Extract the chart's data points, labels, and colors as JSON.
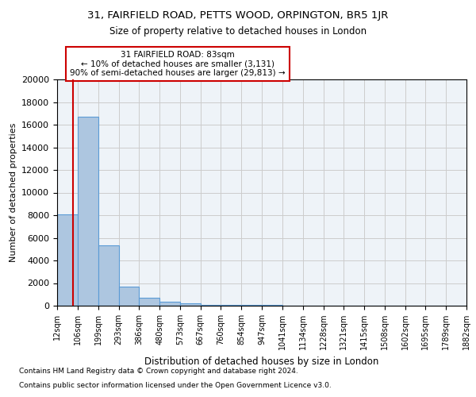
{
  "title1": "31, FAIRFIELD ROAD, PETTS WOOD, ORPINGTON, BR5 1JR",
  "title2": "Size of property relative to detached houses in London",
  "xlabel": "Distribution of detached houses by size in London",
  "ylabel": "Number of detached properties",
  "bar_edges": [
    12,
    106,
    199,
    293,
    386,
    480,
    573,
    667,
    760,
    854,
    947,
    1041,
    1134,
    1228,
    1321,
    1415,
    1508,
    1602,
    1695,
    1789,
    1882
  ],
  "bar_heights": [
    8100,
    16700,
    5300,
    1700,
    700,
    350,
    200,
    100,
    80,
    50,
    40,
    30,
    20,
    15,
    10,
    8,
    6,
    5,
    4,
    3
  ],
  "bar_color": "#adc6e0",
  "bar_edge_color": "#5b9bd5",
  "property_size": 83,
  "red_line_color": "#cc0000",
  "annotation_text": "31 FAIRFIELD ROAD: 83sqm\n← 10% of detached houses are smaller (3,131)\n90% of semi-detached houses are larger (29,813) →",
  "annotation_box_color": "#cc0000",
  "ylim": [
    0,
    20000
  ],
  "yticks": [
    0,
    2000,
    4000,
    6000,
    8000,
    10000,
    12000,
    14000,
    16000,
    18000,
    20000
  ],
  "footnote1": "Contains HM Land Registry data © Crown copyright and database right 2024.",
  "footnote2": "Contains public sector information licensed under the Open Government Licence v3.0.",
  "grid_color": "#cccccc",
  "bg_color": "#eef3f8"
}
